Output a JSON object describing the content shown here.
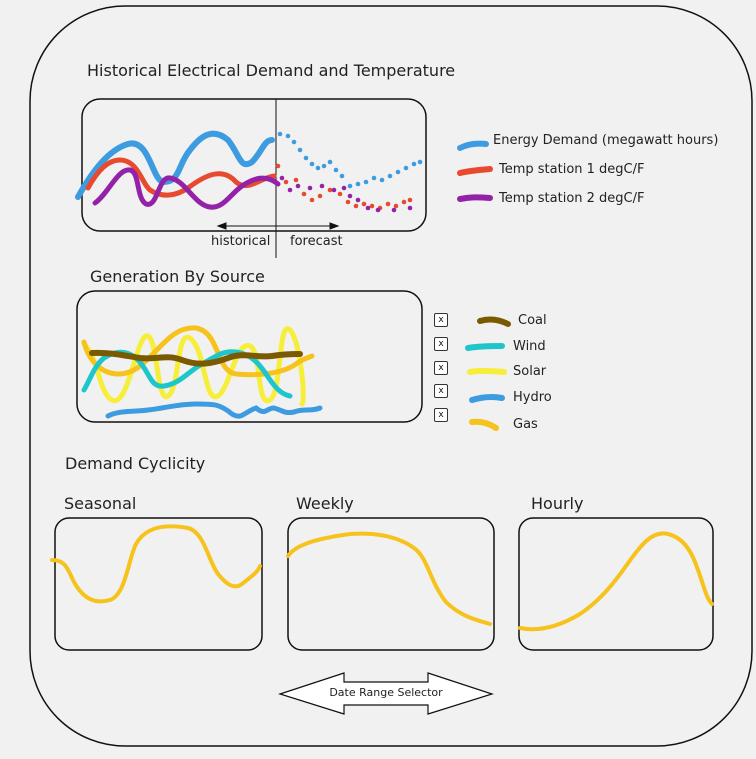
{
  "sections": {
    "historical_title": "Historical Electrical Demand and Temperature",
    "generation_title": "Generation By Source",
    "cyclicity_title": "Demand Cyclicity"
  },
  "historical": {
    "divider_left": "historical",
    "divider_right": "forecast",
    "legend": [
      {
        "label": "Energy Demand (megawatt hours)",
        "color": "#3d9be0"
      },
      {
        "label": "Temp station 1 degC/F",
        "color": "#e84a2f"
      },
      {
        "label": "Temp station 2 degC/F",
        "color": "#9322a8"
      }
    ]
  },
  "generation": {
    "legend": [
      {
        "label": "Coal",
        "color": "#7a5a00",
        "toggle": "x"
      },
      {
        "label": "Wind",
        "color": "#1ec6cc",
        "toggle": "x"
      },
      {
        "label": "Solar",
        "color": "#f6ee3a",
        "toggle": "x"
      },
      {
        "label": "Hydro",
        "color": "#3d9be0",
        "toggle": "x"
      },
      {
        "label": "Gas",
        "color": "#f6c21c",
        "toggle": "x"
      }
    ]
  },
  "cyclicity": {
    "color": "#f6c21c",
    "panels": [
      {
        "title": "Seasonal"
      },
      {
        "title": "Weekly"
      },
      {
        "title": "Hourly"
      }
    ]
  },
  "date_range": {
    "label": "Date Range Selector"
  }
}
